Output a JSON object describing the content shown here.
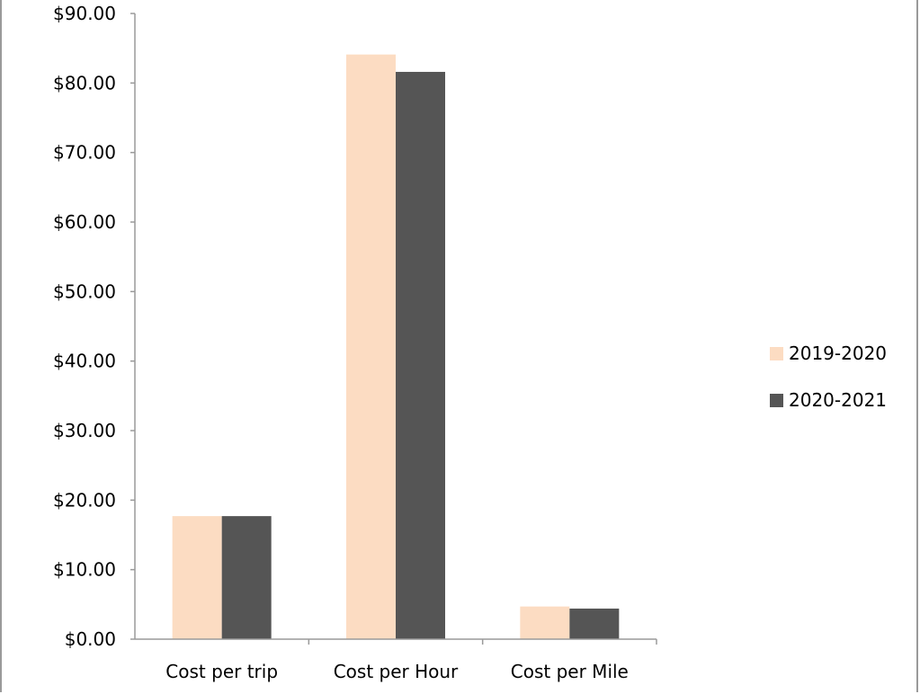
{
  "chart_data": {
    "type": "bar",
    "categories": [
      "Cost per trip",
      "Cost per Hour",
      "Cost per Mile"
    ],
    "series": [
      {
        "name": "2019-2020",
        "values": [
          17.7,
          84.1,
          4.7
        ],
        "color": "#FCDCC2"
      },
      {
        "name": "2020-2021",
        "values": [
          17.7,
          81.6,
          4.4
        ],
        "color": "#555555"
      }
    ],
    "y_ticks": [
      "$0.00",
      "$10.00",
      "$20.00",
      "$30.00",
      "$40.00",
      "$50.00",
      "$60.00",
      "$70.00",
      "$80.00",
      "$90.00"
    ],
    "ylim": [
      0,
      90
    ],
    "title": "",
    "xlabel": "",
    "ylabel": "",
    "grid": false,
    "legend_position": "right"
  }
}
